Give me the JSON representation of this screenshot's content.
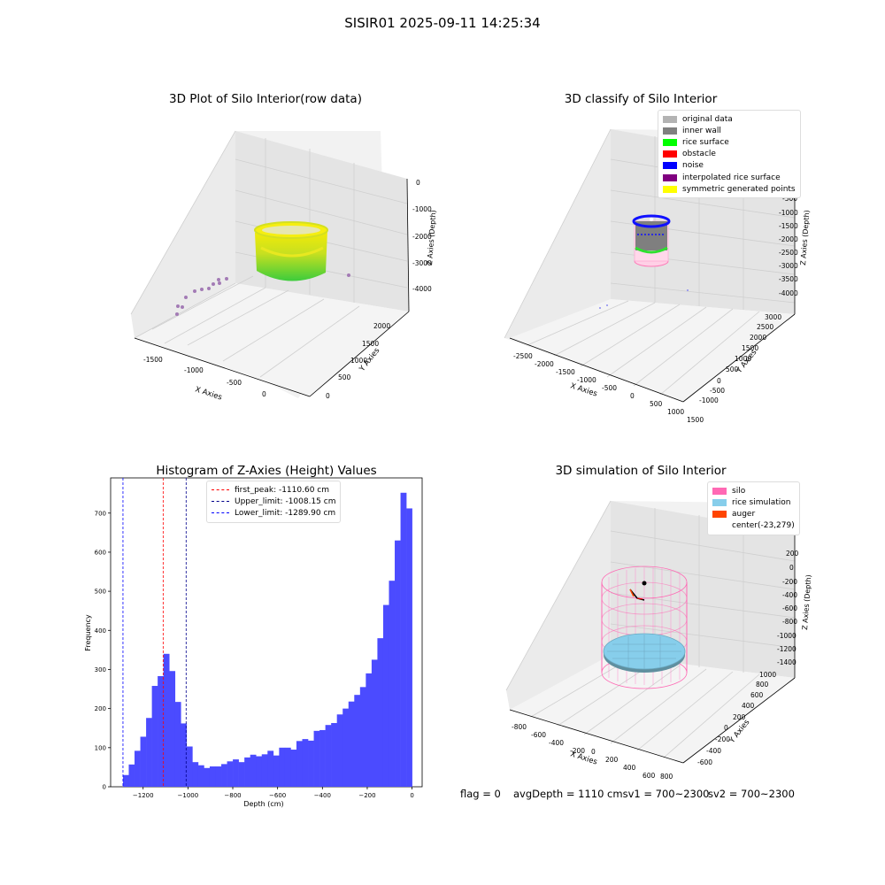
{
  "suptitle": "SISIR01 2025-09-11 14:25:34",
  "panel_raw": {
    "title": "3D Plot of Silo Interior(row data)",
    "xlabel": "X Axies",
    "ylabel": "Y Axies",
    "zlabel": "Z Axies (Depth)",
    "x_ticks": [
      "-1500",
      "-1000",
      "-500",
      "0"
    ],
    "y_ticks": [
      "0",
      "500",
      "1000",
      "1500",
      "2000"
    ],
    "z_ticks": [
      "0",
      "-1000",
      "-2000",
      "-3000",
      "-4000"
    ]
  },
  "panel_classify": {
    "title": "3D classify of Silo Interior",
    "xlabel": "X Axies",
    "ylabel": "Y Axies",
    "zlabel": "Z Axies (Depth)",
    "x_ticks": [
      "-2500",
      "-2000",
      "-1500",
      "-1000",
      "-500",
      "0",
      "500",
      "1000",
      "1500"
    ],
    "y_ticks": [
      "-1000",
      "-500",
      "0",
      "500",
      "1000",
      "1500",
      "2000",
      "2500",
      "3000"
    ],
    "z_ticks": [
      "-500",
      "-1000",
      "-1500",
      "-2000",
      "-2500",
      "-3000",
      "-3500",
      "-4000"
    ],
    "legend": [
      {
        "label": "original data",
        "color": "#b3b3b3"
      },
      {
        "label": "inner wall",
        "color": "#808080"
      },
      {
        "label": "rice surface",
        "color": "#00ff00"
      },
      {
        "label": "obstacle",
        "color": "#ff0000"
      },
      {
        "label": "noise",
        "color": "#0000ff"
      },
      {
        "label": "interpolated rice surface",
        "color": "#800080"
      },
      {
        "label": "symmetric generated points",
        "color": "#ffff00"
      }
    ]
  },
  "panel_sim": {
    "title": "3D simulation of Silo Interior",
    "xlabel": "X Axies",
    "ylabel": "Y Axies",
    "zlabel": "Z Axies (Depth)",
    "x_ticks": [
      "-800",
      "-600",
      "-400",
      "-200",
      "0",
      "200",
      "400",
      "600",
      "800"
    ],
    "y_ticks": [
      "-600",
      "-400",
      "-200",
      "0",
      "200",
      "400",
      "600",
      "800",
      "1000"
    ],
    "z_ticks": [
      "200",
      "0",
      "-200",
      "-400",
      "-600",
      "-800",
      "-1000",
      "-1200",
      "-1400"
    ],
    "legend": [
      {
        "label": "silo",
        "color": "#ff69b4"
      },
      {
        "label": "rice simulation",
        "color": "#87ceeb"
      },
      {
        "label": "auger",
        "color": "#ff4500"
      },
      {
        "label": "center(-23,279)",
        "color": ""
      }
    ]
  },
  "footer": {
    "flag": "flag = 0",
    "avg": "avgDepth = 1110 cmsv1 = 700~2300",
    "sv2": "sv2 = 700~2300"
  },
  "chart_data": {
    "type": "bar",
    "title": "Histogram of Z-Axies (Height) Values",
    "xlabel": "Depth (cm)",
    "ylabel": "Frequency",
    "xlim": [
      -1345,
      45
    ],
    "ylim": [
      0,
      790
    ],
    "x_ticks": [
      -1200,
      -1000,
      -800,
      -600,
      -400,
      -200,
      0
    ],
    "y_ticks": [
      0,
      100,
      200,
      300,
      400,
      500,
      600,
      700
    ],
    "bar_color": "#4b4bff",
    "bin_start": -1289.9,
    "bin_width": 25.8,
    "values": [
      30,
      57,
      92,
      128,
      176,
      258,
      283,
      340,
      296,
      217,
      162,
      103,
      63,
      55,
      48,
      52,
      52,
      58,
      65,
      70,
      63,
      75,
      82,
      78,
      83,
      92,
      80,
      100,
      100,
      95,
      117,
      122,
      118,
      143,
      145,
      158,
      163,
      185,
      200,
      218,
      235,
      255,
      290,
      325,
      380,
      465,
      527,
      630,
      752,
      712
    ],
    "vlines": [
      {
        "label": "first_peak: -1110.60 cm",
        "x": -1110.6,
        "color": "#ff0000"
      },
      {
        "label": "Upper_limit: -1008.15 cm",
        "x": -1008.15,
        "color": "#00008b"
      },
      {
        "label": "Lower_limit: -1289.90 cm",
        "x": -1289.9,
        "color": "#0000ff"
      }
    ]
  }
}
